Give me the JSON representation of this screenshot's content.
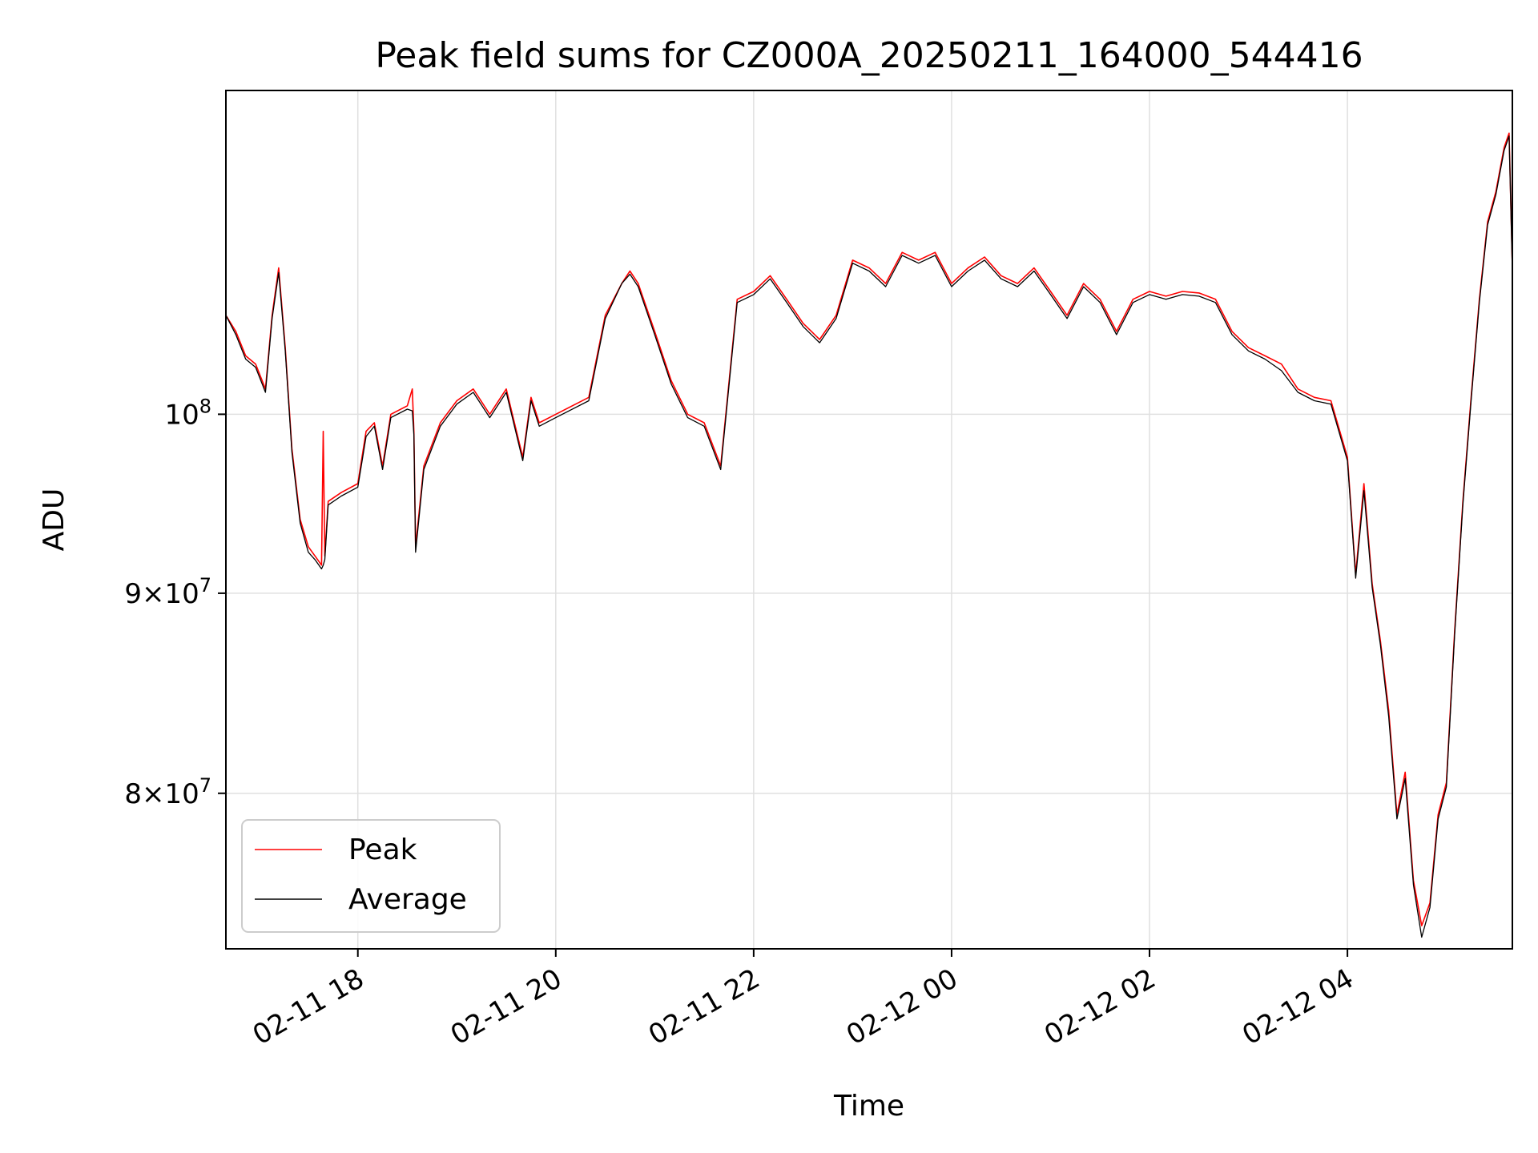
{
  "chart_data": {
    "type": "line",
    "title": "Peak field sums for CZ000A_20250211_164000_544416",
    "xlabel": "Time",
    "ylabel": "ADU",
    "y_scale": "log",
    "grid": true,
    "legend_position": "lower-left",
    "xlim": [
      "2025-02-11T16:40",
      "2025-02-12T05:40"
    ],
    "ylim": [
      73000000,
      121000000
    ],
    "x_ticks": [
      {
        "t": "2025-02-11T18:00",
        "label": "02-11 18"
      },
      {
        "t": "2025-02-11T20:00",
        "label": "02-11 20"
      },
      {
        "t": "2025-02-11T22:00",
        "label": "02-11 22"
      },
      {
        "t": "2025-02-12T00:00",
        "label": "02-12 00"
      },
      {
        "t": "2025-02-12T02:00",
        "label": "02-12 02"
      },
      {
        "t": "2025-02-12T04:00",
        "label": "02-12 04"
      }
    ],
    "y_ticks": [
      {
        "value": 100000000,
        "mantissa": "",
        "exponent": "8"
      },
      {
        "value": 90000000,
        "mantissa": "9",
        "exponent": "7"
      },
      {
        "value": 80000000,
        "mantissa": "8",
        "exponent": "7"
      }
    ],
    "series": [
      {
        "name": "Peak",
        "color": "#ff0000",
        "x": [
          "2025-02-11T16:40",
          "2025-02-11T16:46",
          "2025-02-11T16:52",
          "2025-02-11T16:58",
          "2025-02-11T17:02",
          "2025-02-11T17:04",
          "2025-02-11T17:08",
          "2025-02-11T17:12",
          "2025-02-11T17:16",
          "2025-02-11T17:20",
          "2025-02-11T17:25",
          "2025-02-11T17:30",
          "2025-02-11T17:34",
          "2025-02-11T17:38",
          "2025-02-11T17:39",
          "2025-02-11T17:40",
          "2025-02-11T17:42",
          "2025-02-11T17:50",
          "2025-02-11T18:00",
          "2025-02-11T18:05",
          "2025-02-11T18:10",
          "2025-02-11T18:15",
          "2025-02-11T18:20",
          "2025-02-11T18:30",
          "2025-02-11T18:33",
          "2025-02-11T18:34",
          "2025-02-11T18:35",
          "2025-02-11T18:40",
          "2025-02-11T18:50",
          "2025-02-11T19:00",
          "2025-02-11T19:10",
          "2025-02-11T19:20",
          "2025-02-11T19:30",
          "2025-02-11T19:40",
          "2025-02-11T19:45",
          "2025-02-11T19:50",
          "2025-02-11T20:00",
          "2025-02-11T20:20",
          "2025-02-11T20:30",
          "2025-02-11T20:40",
          "2025-02-11T20:45",
          "2025-02-11T20:50",
          "2025-02-11T21:00",
          "2025-02-11T21:10",
          "2025-02-11T21:20",
          "2025-02-11T21:30",
          "2025-02-11T21:40",
          "2025-02-11T21:50",
          "2025-02-11T22:00",
          "2025-02-11T22:10",
          "2025-02-11T22:20",
          "2025-02-11T22:30",
          "2025-02-11T22:40",
          "2025-02-11T22:50",
          "2025-02-11T23:00",
          "2025-02-11T23:10",
          "2025-02-11T23:20",
          "2025-02-11T23:30",
          "2025-02-11T23:40",
          "2025-02-11T23:50",
          "2025-02-12T00:00",
          "2025-02-12T00:10",
          "2025-02-12T00:20",
          "2025-02-12T00:30",
          "2025-02-12T00:40",
          "2025-02-12T00:50",
          "2025-02-12T01:00",
          "2025-02-12T01:10",
          "2025-02-12T01:20",
          "2025-02-12T01:30",
          "2025-02-12T01:40",
          "2025-02-12T01:50",
          "2025-02-12T02:00",
          "2025-02-12T02:10",
          "2025-02-12T02:20",
          "2025-02-12T02:30",
          "2025-02-12T02:40",
          "2025-02-12T02:50",
          "2025-02-12T03:00",
          "2025-02-12T03:10",
          "2025-02-12T03:20",
          "2025-02-12T03:30",
          "2025-02-12T03:40",
          "2025-02-12T03:50",
          "2025-02-12T04:00",
          "2025-02-12T04:05",
          "2025-02-12T04:10",
          "2025-02-12T04:15",
          "2025-02-12T04:20",
          "2025-02-12T04:25",
          "2025-02-12T04:30",
          "2025-02-12T04:35",
          "2025-02-12T04:40",
          "2025-02-12T04:45",
          "2025-02-12T04:50",
          "2025-02-12T04:55",
          "2025-02-12T05:00",
          "2025-02-12T05:05",
          "2025-02-12T05:10",
          "2025-02-12T05:15",
          "2025-02-12T05:20",
          "2025-02-12T05:25",
          "2025-02-12T05:30",
          "2025-02-12T05:35",
          "2025-02-12T05:38",
          "2025-02-12T05:40"
        ],
        "y": [
          106000000,
          105000000,
          103500000,
          103000000,
          102000000,
          101500000,
          106000000,
          109000000,
          104000000,
          98000000,
          94000000,
          92500000,
          92000000,
          91500000,
          99000000,
          92000000,
          95000000,
          95500000,
          96000000,
          99000000,
          99500000,
          97000000,
          100000000,
          100500000,
          101500000,
          99000000,
          92500000,
          97000000,
          99500000,
          100800000,
          101500000,
          100000000,
          101500000,
          97500000,
          101000000,
          99500000,
          100000000,
          101000000,
          106000000,
          108000000,
          108800000,
          108000000,
          105000000,
          102000000,
          100000000,
          99500000,
          97000000,
          107000000,
          107500000,
          108500000,
          107000000,
          105500000,
          104500000,
          106000000,
          109500000,
          109000000,
          108000000,
          110000000,
          109500000,
          110000000,
          108000000,
          109000000,
          109700000,
          108500000,
          108000000,
          109000000,
          107500000,
          106000000,
          108000000,
          107000000,
          105000000,
          107000000,
          107500000,
          107200000,
          107500000,
          107400000,
          107000000,
          105000000,
          104000000,
          103500000,
          103000000,
          101500000,
          101000000,
          100800000,
          97500000,
          91000000,
          96000000,
          90500000,
          87500000,
          84000000,
          79000000,
          81000000,
          76000000,
          74000000,
          75000000,
          79000000,
          80500000,
          88000000,
          95000000,
          101000000,
          107000000,
          112000000,
          114000000,
          117000000,
          118000000,
          109000000
        ],
        "note_spikes": true
      },
      {
        "name": "Average",
        "color": "#000000",
        "x": [
          "2025-02-11T16:40",
          "2025-02-11T16:46",
          "2025-02-11T16:52",
          "2025-02-11T16:58",
          "2025-02-11T17:02",
          "2025-02-11T17:04",
          "2025-02-11T17:08",
          "2025-02-11T17:12",
          "2025-02-11T17:16",
          "2025-02-11T17:20",
          "2025-02-11T17:25",
          "2025-02-11T17:30",
          "2025-02-11T17:34",
          "2025-02-11T17:38",
          "2025-02-11T17:39",
          "2025-02-11T17:40",
          "2025-02-11T17:42",
          "2025-02-11T17:50",
          "2025-02-11T18:00",
          "2025-02-11T18:05",
          "2025-02-11T18:10",
          "2025-02-11T18:15",
          "2025-02-11T18:20",
          "2025-02-11T18:30",
          "2025-02-11T18:33",
          "2025-02-11T18:34",
          "2025-02-11T18:35",
          "2025-02-11T18:40",
          "2025-02-11T18:50",
          "2025-02-11T19:00",
          "2025-02-11T19:10",
          "2025-02-11T19:20",
          "2025-02-11T19:30",
          "2025-02-11T19:40",
          "2025-02-11T19:45",
          "2025-02-11T19:50",
          "2025-02-11T20:00",
          "2025-02-11T20:20",
          "2025-02-11T20:30",
          "2025-02-11T20:40",
          "2025-02-11T20:45",
          "2025-02-11T20:50",
          "2025-02-11T21:00",
          "2025-02-11T21:10",
          "2025-02-11T21:20",
          "2025-02-11T21:30",
          "2025-02-11T21:40",
          "2025-02-11T21:50",
          "2025-02-11T22:00",
          "2025-02-11T22:10",
          "2025-02-11T22:20",
          "2025-02-11T22:30",
          "2025-02-11T22:40",
          "2025-02-11T22:50",
          "2025-02-11T23:00",
          "2025-02-11T23:10",
          "2025-02-11T23:20",
          "2025-02-11T23:30",
          "2025-02-11T23:40",
          "2025-02-11T23:50",
          "2025-02-12T00:00",
          "2025-02-12T00:10",
          "2025-02-12T00:20",
          "2025-02-12T00:30",
          "2025-02-12T00:40",
          "2025-02-12T00:50",
          "2025-02-12T01:00",
          "2025-02-12T01:10",
          "2025-02-12T01:20",
          "2025-02-12T01:30",
          "2025-02-12T01:40",
          "2025-02-12T01:50",
          "2025-02-12T02:00",
          "2025-02-12T02:10",
          "2025-02-12T02:20",
          "2025-02-12T02:30",
          "2025-02-12T02:40",
          "2025-02-12T02:50",
          "2025-02-12T03:00",
          "2025-02-12T03:10",
          "2025-02-12T03:20",
          "2025-02-12T03:30",
          "2025-02-12T03:40",
          "2025-02-12T03:50",
          "2025-02-12T04:00",
          "2025-02-12T04:05",
          "2025-02-12T04:10",
          "2025-02-12T04:15",
          "2025-02-12T04:20",
          "2025-02-12T04:25",
          "2025-02-12T04:30",
          "2025-02-12T04:35",
          "2025-02-12T04:40",
          "2025-02-12T04:45",
          "2025-02-12T04:50",
          "2025-02-12T04:55",
          "2025-02-12T05:00",
          "2025-02-12T05:05",
          "2025-02-12T05:10",
          "2025-02-12T05:15",
          "2025-02-12T05:20",
          "2025-02-12T05:25",
          "2025-02-12T05:30",
          "2025-02-12T05:35",
          "2025-02-12T05:38",
          "2025-02-12T05:40"
        ],
        "y": [
          106000000,
          104800000,
          103300000,
          102800000,
          101800000,
          101300000,
          105800000,
          108700000,
          103800000,
          97800000,
          93800000,
          92200000,
          91800000,
          91300000,
          91500000,
          91800000,
          94800000,
          95300000,
          95800000,
          98700000,
          99300000,
          96800000,
          99800000,
          100300000,
          100200000,
          98800000,
          92200000,
          96800000,
          99300000,
          100600000,
          101300000,
          99800000,
          101300000,
          97300000,
          100800000,
          99300000,
          99800000,
          100800000,
          105800000,
          108000000,
          108600000,
          107800000,
          104800000,
          101800000,
          99800000,
          99300000,
          96800000,
          106800000,
          107300000,
          108300000,
          106800000,
          105300000,
          104300000,
          105800000,
          109300000,
          108800000,
          107800000,
          109800000,
          109300000,
          109800000,
          107800000,
          108800000,
          109500000,
          108300000,
          107800000,
          108800000,
          107300000,
          105800000,
          107800000,
          106800000,
          104800000,
          106800000,
          107300000,
          107000000,
          107300000,
          107200000,
          106800000,
          104800000,
          103800000,
          103300000,
          102600000,
          101300000,
          100800000,
          100600000,
          97300000,
          90800000,
          95600000,
          90300000,
          87300000,
          83700000,
          78800000,
          80700000,
          75800000,
          73500000,
          74800000,
          78800000,
          80300000,
          87800000,
          94800000,
          100800000,
          106800000,
          111800000,
          113800000,
          116800000,
          117800000,
          108800000
        ]
      }
    ]
  }
}
